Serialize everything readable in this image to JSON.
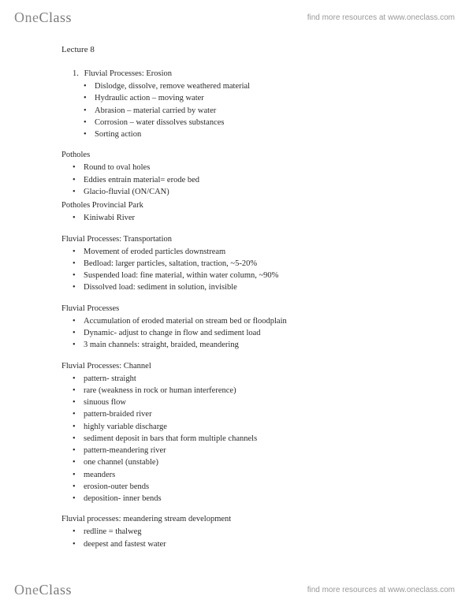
{
  "brand": {
    "part1": "One",
    "part2": "Class"
  },
  "tagline": "find more resources at www.oneclass.com",
  "title": "Lecture 8",
  "sections": [
    {
      "heading": "Fluvial Processes: Erosion",
      "numbered": true,
      "number": "1.",
      "deep": true,
      "items": [
        "Dislodge, dissolve, remove weathered material",
        "Hydraulic action – moving water",
        "Abrasion – material carried by water",
        "Corrosion – water dissolves substances",
        "Sorting action"
      ]
    },
    {
      "heading": "Potholes",
      "items": [
        "Round to oval holes",
        "Eddies entrain material= erode bed",
        "Glacio-fluvial (ON/CAN)"
      ],
      "trailing": [
        "Potholes Provincial Park",
        "Kiniwabi River"
      ]
    },
    {
      "heading": "Fluvial Processes: Transportation",
      "items": [
        "Movement of eroded particles downstream",
        "Bedload: larger particles, saltation, traction, ~5-20%",
        "Suspended load: fine material, within water column, ~90%",
        "Dissolved load: sediment in solution, invisible"
      ]
    },
    {
      "heading": "Fluvial Processes",
      "items": [
        "Accumulation of eroded material on stream bed or floodplain",
        "Dynamic- adjust to change in flow and sediment load",
        "3 main channels: straight, braided, meandering"
      ]
    },
    {
      "heading": "Fluvial Processes: Channel",
      "items": [
        "pattern- straight",
        "rare (weakness in rock or human interference)",
        "sinuous flow",
        "pattern-braided river",
        "highly variable discharge",
        "sediment deposit in bars that form multiple channels",
        "pattern-meandering river",
        "one channel (unstable)",
        "meanders",
        "erosion-outer bends",
        "deposition- inner bends"
      ]
    },
    {
      "heading": "Fluvial processes: meandering stream development",
      "items": [
        "redline = thalweg",
        "deepest and fastest water"
      ]
    }
  ]
}
